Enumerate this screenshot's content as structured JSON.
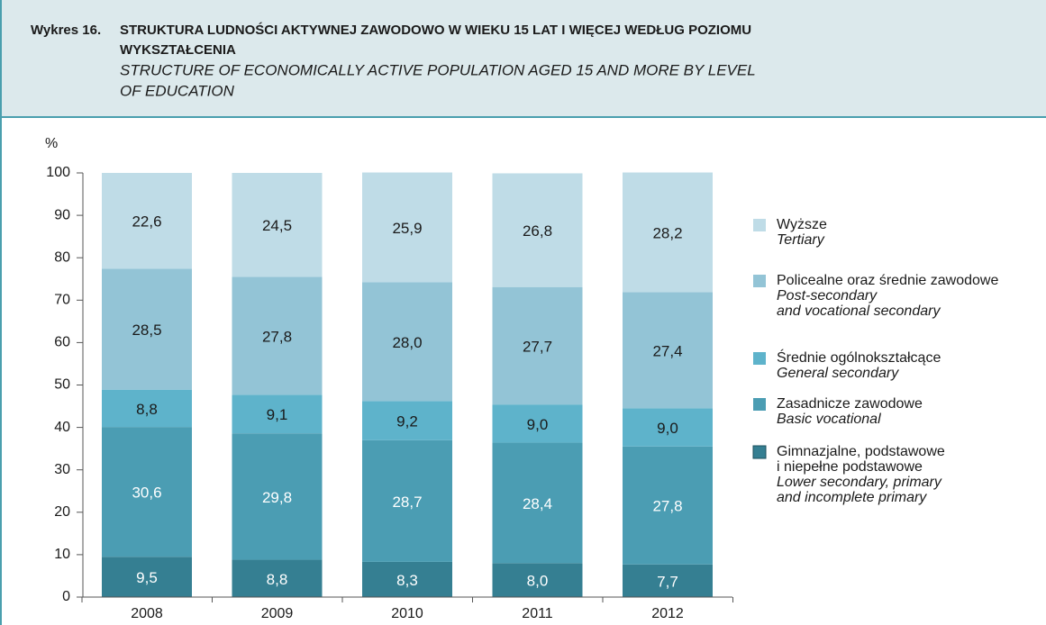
{
  "chart_data": {
    "type": "stacked_bar",
    "title_label": "Wykres 16.",
    "title_lines": [
      "STRUKTURA LUDNOŚCI AKTYWNEJ ZAWODOWO W WIEKU 15 LAT I WIĘCEJ WEDŁUG POZIOMU",
      "WYKSZTAŁCENIA"
    ],
    "subtitle_lines": [
      "STRUCTURE OF ECONOMICALLY ACTIVE POPULATION AGED 15 AND MORE BY LEVEL",
      "OF EDUCATION"
    ],
    "y_label": "%",
    "categories": [
      "2008",
      "2009",
      "2010",
      "2011",
      "2012"
    ],
    "ylim": [
      0,
      100
    ],
    "yticks": [
      0,
      10,
      20,
      30,
      40,
      50,
      60,
      70,
      80,
      90,
      100
    ],
    "series": [
      {
        "name": [
          "Gimnazjalne, podstawowe",
          "i niepełne podstawowe"
        ],
        "name_en": [
          "Lower secondary, primary",
          "and incomplete primary"
        ],
        "color": "#357f92",
        "label_color": "#ffffff",
        "values": [
          9.5,
          8.8,
          8.3,
          8.0,
          7.7
        ],
        "value_labels": [
          "9,5",
          "8,8",
          "8,3",
          "8,0",
          "7,7"
        ]
      },
      {
        "name": [
          "Zasadnicze zawodowe"
        ],
        "name_en": [
          "Basic vocational"
        ],
        "color": "#4b9db3",
        "label_color": "#ffffff",
        "values": [
          30.6,
          29.8,
          28.7,
          28.4,
          27.8
        ],
        "value_labels": [
          "30,6",
          "29,8",
          "28,7",
          "28,4",
          "27,8"
        ]
      },
      {
        "name": [
          "Średnie ogólnokształcące"
        ],
        "name_en": [
          "General secondary"
        ],
        "color": "#5eb3cb",
        "label_color": "#1a1a1a",
        "values": [
          8.8,
          9.1,
          9.2,
          9.0,
          9.0
        ],
        "value_labels": [
          "8,8",
          "9,1",
          "9,2",
          "9,0",
          "9,0"
        ]
      },
      {
        "name": [
          "Policealne oraz średnie zawodowe"
        ],
        "name_en": [
          "Post-secondary",
          "and vocational secondary"
        ],
        "color": "#93c4d6",
        "label_color": "#1a1a1a",
        "values": [
          28.5,
          27.8,
          28.0,
          27.7,
          27.4
        ],
        "value_labels": [
          "28,5",
          "27,8",
          "28,0",
          "27,7",
          "27,4"
        ]
      },
      {
        "name": [
          "Wyższe"
        ],
        "name_en": [
          "Tertiary"
        ],
        "color": "#bfdce7",
        "label_color": "#1a1a1a",
        "values": [
          22.6,
          24.5,
          25.9,
          26.8,
          28.2
        ],
        "value_labels": [
          "22,6",
          "24,5",
          "25,9",
          "26,8",
          "28,2"
        ]
      }
    ]
  }
}
